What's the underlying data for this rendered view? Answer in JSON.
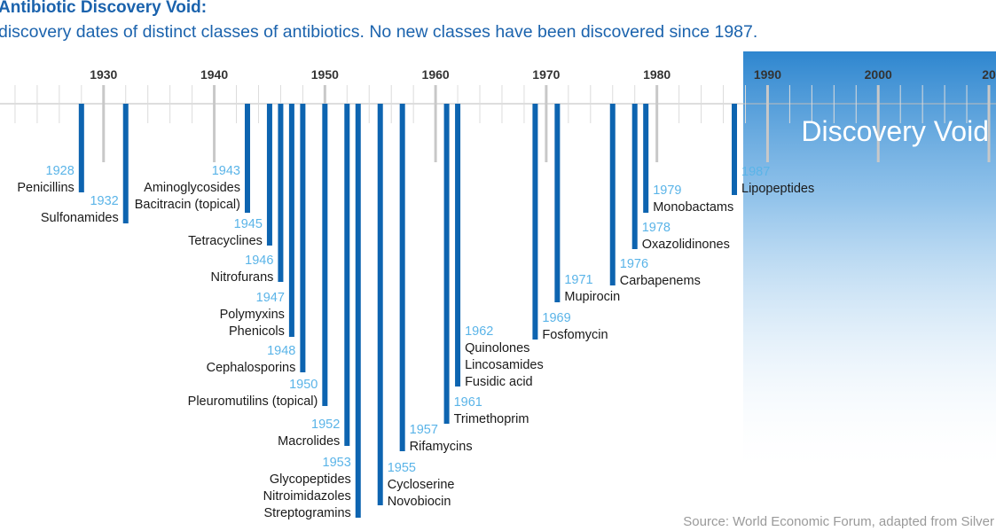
{
  "title": "Antibiotic Discovery Void:",
  "subtitle": "discovery dates of distinct classes of antibiotics. No new classes have been discovered since 1987.",
  "source": "Source: World Economic Forum, adapted from Silver",
  "colors": {
    "bar": "#0d64b0",
    "date": "#5ab4e8",
    "text": "#1a1a1a",
    "void": "#3a92d6",
    "tick": "#c8c8c8"
  },
  "chart_data": {
    "type": "timeline",
    "title": "Antibiotic Discovery Void:",
    "subtitle": "discovery dates of distinct classes of antibiotics. No new classes have been discovered since 1987.",
    "xlim": [
      1920,
      2010
    ],
    "decade_labels": [
      "20",
      "1930",
      "1940",
      "1950",
      "1960",
      "1970",
      "1980",
      "1990",
      "2000",
      "20"
    ],
    "void": {
      "start": 1987,
      "label": "Discovery Void"
    },
    "events": [
      {
        "year": 1928,
        "date_label": "1928",
        "classes": [
          "Penicillins"
        ]
      },
      {
        "year": 1932,
        "date_label": "1932",
        "classes": [
          "Sulfonamides"
        ]
      },
      {
        "year": 1943,
        "date_label": "1943",
        "classes": [
          "Aminoglycosides",
          "Bacitracin (topical)"
        ]
      },
      {
        "year": 1945,
        "date_label": "1945",
        "classes": [
          "Tetracyclines"
        ]
      },
      {
        "year": 1946,
        "date_label": "1946",
        "classes": [
          "Nitrofurans"
        ]
      },
      {
        "year": 1947,
        "date_label": "1947",
        "classes": [
          "Polymyxins",
          "Phenicols"
        ]
      },
      {
        "year": 1948,
        "date_label": "1948",
        "classes": [
          "Cephalosporins"
        ]
      },
      {
        "year": 1950,
        "date_label": "1950",
        "classes": [
          "Pleuromutilins (topical)"
        ]
      },
      {
        "year": 1952,
        "date_label": "1952",
        "classes": [
          "Macrolides"
        ]
      },
      {
        "year": 1953,
        "date_label": "1953",
        "classes": [
          "Glycopeptides",
          "Nitroimidazoles",
          "Streptogramins"
        ]
      },
      {
        "year": 1955,
        "date_label": "1955",
        "classes": [
          "Cycloserine",
          "Novobiocin"
        ]
      },
      {
        "year": 1957,
        "date_label": "1957",
        "classes": [
          "Rifamycins"
        ]
      },
      {
        "year": 1961,
        "date_label": "1961",
        "classes": [
          "Trimethoprim"
        ]
      },
      {
        "year": 1962,
        "date_label": "1962",
        "classes": [
          "Quinolones",
          "Lincosamides",
          "Fusidic acid"
        ]
      },
      {
        "year": 1969,
        "date_label": "1969",
        "classes": [
          "Fosfomycin"
        ]
      },
      {
        "year": 1971,
        "date_label": "1971",
        "classes": [
          "Mupirocin"
        ]
      },
      {
        "year": 1976,
        "date_label": "1976",
        "classes": [
          "Carbapenems"
        ]
      },
      {
        "year": 1978,
        "date_label": "1978",
        "classes": [
          "Oxazolidinones"
        ]
      },
      {
        "year": 1979,
        "date_label": "1979",
        "classes": [
          "Monobactams"
        ]
      },
      {
        "year": 1987,
        "date_label": "1987",
        "classes": [
          "Lipopeptides"
        ]
      }
    ]
  }
}
